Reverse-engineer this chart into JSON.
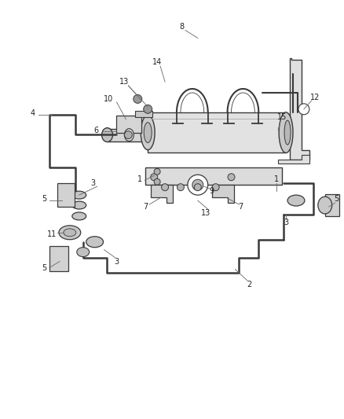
{
  "bg_color": "#ffffff",
  "line_color": "#3a3a3a",
  "fig_width": 4.39,
  "fig_height": 5.33,
  "dpi": 100,
  "lw_pipe": 1.8,
  "lw_part": 1.0,
  "lw_leader": 0.6,
  "label_fontsize": 7.0,
  "label_color": "#222222",
  "part_fill": "#d8d8d8",
  "part_edge": "#3a3a3a",
  "leader_color": "#666666"
}
